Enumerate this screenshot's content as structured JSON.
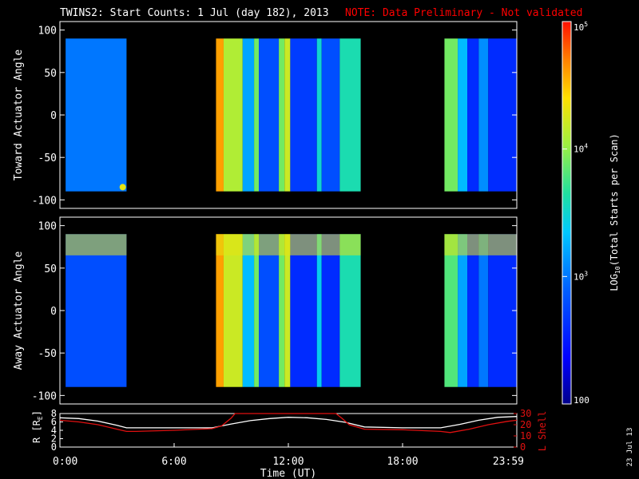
{
  "header": {
    "title": "TWINS2: Start Counts:  1 Jul (day 182), 2013",
    "note": "NOTE: Data Preliminary - Not validated"
  },
  "date_stamp": "23 Jul 13",
  "colors": {
    "background": "#000000",
    "text": "#ffffff",
    "note": "#ff0000",
    "l_shell_line": "#e01010",
    "r_line": "#ffffff"
  },
  "chart_data": [
    {
      "type": "heatmap",
      "panel": "toward",
      "ylabel": "Toward Actuator Angle",
      "ylim": [
        -110,
        110
      ],
      "yticks": [
        100,
        50,
        0,
        -50,
        -100
      ],
      "ytick_labels": [
        "100",
        "50",
        "0",
        "-50",
        "-100"
      ],
      "x_range_hours": [
        0,
        24
      ],
      "angle_range": [
        -90,
        90
      ],
      "data_segments_hours": [
        [
          0.3,
          3.5
        ],
        [
          8.2,
          15.8
        ],
        [
          20.2,
          24.0
        ]
      ],
      "color_units": "LOG10 counts per scan (approx)",
      "intervals": [
        {
          "start": 0.3,
          "end": 3.5,
          "level": 3.0
        },
        {
          "start": 8.2,
          "end": 8.6,
          "level": 4.6
        },
        {
          "start": 8.6,
          "end": 9.6,
          "level": 4.1
        },
        {
          "start": 9.6,
          "end": 10.2,
          "level": 3.2
        },
        {
          "start": 10.2,
          "end": 10.45,
          "level": 3.9
        },
        {
          "start": 10.45,
          "end": 11.5,
          "level": 2.8
        },
        {
          "start": 11.5,
          "end": 11.8,
          "level": 3.9
        },
        {
          "start": 11.8,
          "end": 12.1,
          "level": 4.2
        },
        {
          "start": 12.1,
          "end": 13.5,
          "level": 2.7
        },
        {
          "start": 13.5,
          "end": 13.75,
          "level": 3.5
        },
        {
          "start": 13.75,
          "end": 14.7,
          "level": 2.8
        },
        {
          "start": 14.7,
          "end": 15.8,
          "level": 3.6
        },
        {
          "start": 20.2,
          "end": 20.9,
          "level": 3.9
        },
        {
          "start": 20.9,
          "end": 21.4,
          "level": 3.3
        },
        {
          "start": 21.4,
          "end": 22.0,
          "level": 2.6
        },
        {
          "start": 22.0,
          "end": 22.5,
          "level": 3.1
        },
        {
          "start": 22.5,
          "end": 24.0,
          "level": 2.6
        }
      ],
      "hot_spot": {
        "hour": 3.3,
        "angle": -85,
        "level": 4.3
      }
    },
    {
      "type": "heatmap",
      "panel": "away",
      "ylabel": "Away Actuator Angle",
      "ylim": [
        -110,
        110
      ],
      "yticks": [
        100,
        50,
        0,
        -50,
        -100
      ],
      "ytick_labels": [
        "100",
        "50",
        "0",
        "-50",
        "-100"
      ],
      "x_range_hours": [
        0,
        24
      ],
      "angle_range": [
        -90,
        90
      ],
      "data_segments_hours": [
        [
          0.3,
          3.5
        ],
        [
          8.2,
          15.8
        ],
        [
          20.2,
          24.0
        ]
      ],
      "color_units": "LOG10 counts per scan (approx)",
      "intervals": [
        {
          "start": 0.3,
          "end": 3.5,
          "level": 2.8
        },
        {
          "start": 8.2,
          "end": 8.6,
          "level": 4.6
        },
        {
          "start": 8.6,
          "end": 9.6,
          "level": 4.2
        },
        {
          "start": 9.6,
          "end": 10.2,
          "level": 3.3
        },
        {
          "start": 10.2,
          "end": 10.45,
          "level": 3.9
        },
        {
          "start": 10.45,
          "end": 11.5,
          "level": 2.8
        },
        {
          "start": 11.5,
          "end": 11.8,
          "level": 3.9
        },
        {
          "start": 11.8,
          "end": 12.1,
          "level": 4.2
        },
        {
          "start": 12.1,
          "end": 13.5,
          "level": 2.6
        },
        {
          "start": 13.5,
          "end": 13.75,
          "level": 3.4
        },
        {
          "start": 13.75,
          "end": 14.7,
          "level": 2.6
        },
        {
          "start": 14.7,
          "end": 15.8,
          "level": 3.6
        },
        {
          "start": 20.2,
          "end": 20.9,
          "level": 3.8
        },
        {
          "start": 20.9,
          "end": 21.4,
          "level": 3.2
        },
        {
          "start": 21.4,
          "end": 22.0,
          "level": 2.6
        },
        {
          "start": 22.0,
          "end": 22.5,
          "level": 3.0
        },
        {
          "start": 22.5,
          "end": 24.0,
          "level": 2.6
        }
      ],
      "top_band": {
        "angle_min": 65,
        "angle_max": 90,
        "level": 4.3
      }
    },
    {
      "type": "line",
      "panel": "ephemeris",
      "xlabel": "Time (UT)",
      "xlim": [
        0,
        24
      ],
      "xticks": [
        0,
        6,
        12,
        18,
        24
      ],
      "xtick_labels": [
        "0:00",
        "6:00",
        "12:00",
        "18:00",
        "23:59"
      ],
      "ylabel_left": "R [R",
      "ylabel_left_sub": "E",
      "ylabel_left_close": "]",
      "ylim_left": [
        0,
        8
      ],
      "yticks_left": [
        "0",
        "2",
        "4",
        "6",
        "8"
      ],
      "ylabel_right": "L Shell",
      "ylim_right": [
        0,
        30
      ],
      "yticks_right": [
        "0",
        "10",
        "20",
        "30"
      ],
      "series": [
        {
          "name": "R",
          "axis": "left",
          "x": [
            0,
            1,
            2,
            3,
            3.5,
            4,
            6,
            8,
            9,
            10,
            11,
            12,
            13,
            14,
            15,
            16,
            18,
            20,
            21,
            22,
            23,
            24
          ],
          "y": [
            7.0,
            6.8,
            6.2,
            5.2,
            4.6,
            4.6,
            4.6,
            4.6,
            5.5,
            6.3,
            6.8,
            7.1,
            7.0,
            6.6,
            5.9,
            4.8,
            4.6,
            4.6,
            5.4,
            6.4,
            7.1,
            7.3
          ]
        },
        {
          "name": "L Shell",
          "axis": "right",
          "x": [
            0,
            1,
            2,
            3,
            3.5,
            4,
            6,
            8,
            8.5,
            9,
            9.2,
            14.5,
            14.8,
            15.2,
            15.8,
            16,
            18,
            20,
            20.5,
            21.5,
            22.5,
            23.5,
            24
          ],
          "y": [
            24,
            22.5,
            20,
            16,
            14,
            14,
            15,
            16.5,
            19,
            26,
            30,
            30,
            26,
            20,
            17,
            16,
            15.5,
            14,
            13,
            16,
            20,
            23,
            24
          ]
        }
      ]
    }
  ],
  "colorbar": {
    "label": "LOG",
    "label_sub": "10",
    "label_rest": "(Total Starts per Scan)",
    "levels": [
      2,
      3,
      4,
      5
    ],
    "tick_labels": [
      "100",
      "10",
      "10",
      "10"
    ],
    "tick_exponents": [
      "",
      "3",
      "4",
      "5"
    ]
  }
}
